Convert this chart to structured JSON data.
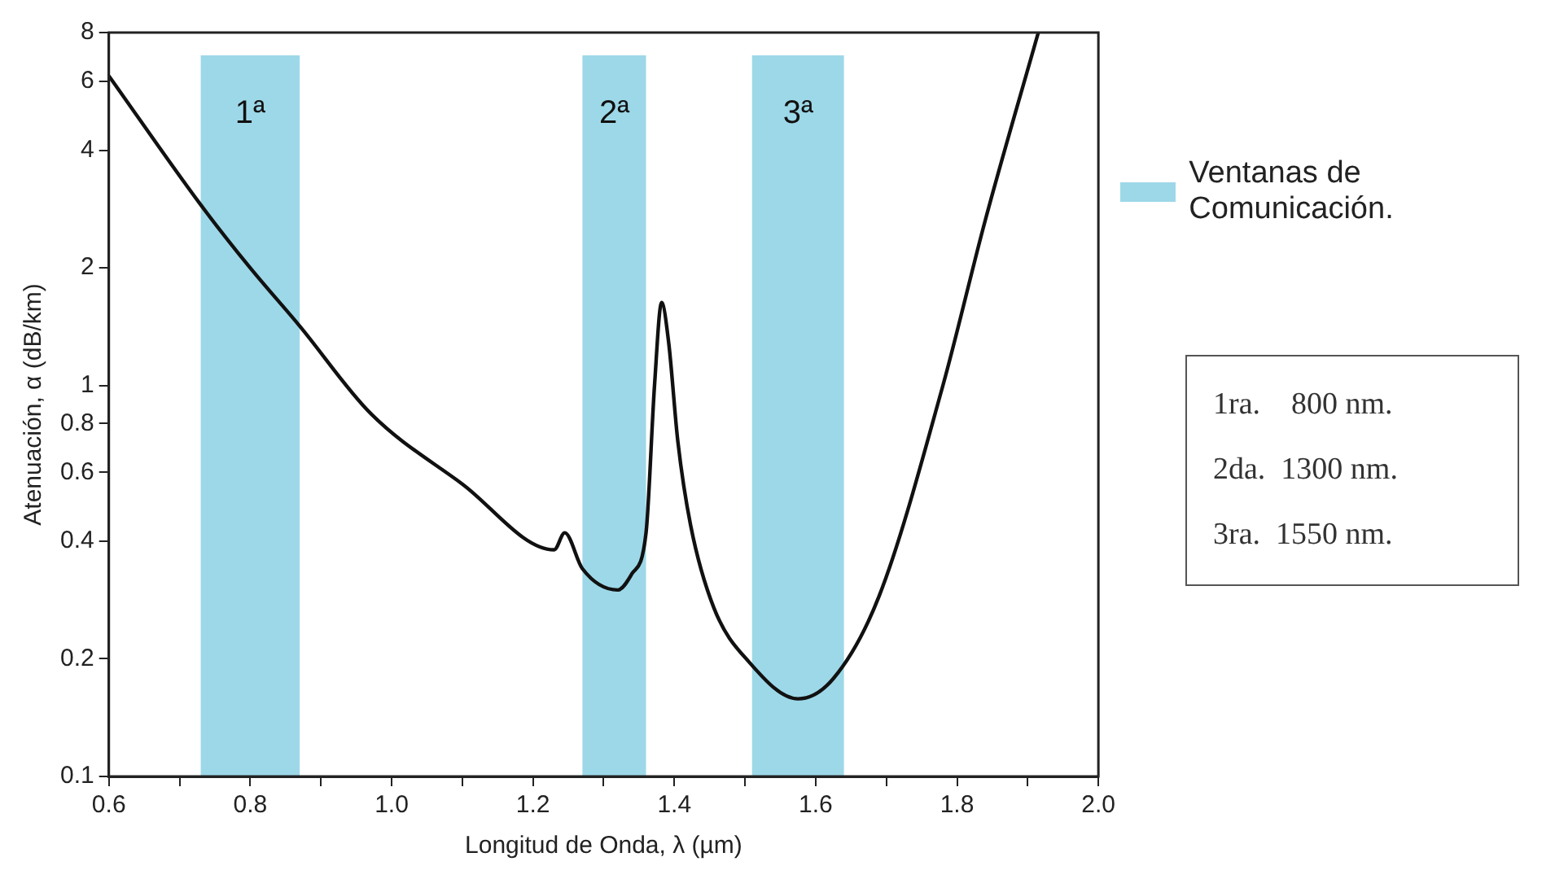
{
  "chart_data": {
    "type": "line",
    "xlabel": "Longitud de Onda, λ (µm)",
    "ylabel": "Atenuación, α (dB/km)",
    "legend_title": "Ventanas de Comunicación.",
    "log": "y",
    "grid": false,
    "marker": "none",
    "line_style": "solid",
    "xlim": [
      0.6,
      2.0
    ],
    "xticks": [
      0.6,
      {
        "value": 0.7,
        "label": null
      },
      0.8,
      {
        "value": 0.9,
        "label": null
      },
      {
        "value": 1,
        "label": "1.0"
      },
      {
        "value": 1.1,
        "label": null
      },
      1.2,
      {
        "value": 1.3,
        "label": null
      },
      1.4,
      {
        "value": 1.5,
        "label": null
      },
      1.6,
      {
        "value": 1.7,
        "label": null
      },
      1.8,
      {
        "value": 1.9,
        "label": null
      },
      {
        "value": 2,
        "label": "2.0"
      }
    ],
    "ylim": [
      0.1,
      8
    ],
    "yticks": [
      0.1,
      0.2,
      0.4,
      0.6,
      0.8,
      1,
      2,
      4,
      6,
      8
    ],
    "series": [
      {
        "color": "#111111",
        "x": [
          0.6,
          0.73,
          0.8,
          0.87,
          0.97,
          1.1,
          1.23,
          1.245,
          1.27,
          1.32,
          1.34,
          1.36,
          1.372,
          1.382,
          1.392,
          1.405,
          1.423,
          1.456,
          1.506,
          1.575,
          1.625,
          1.69,
          1.78,
          1.84,
          1.915
        ],
        "values": [
          6.2,
          2.9,
          2.0,
          1.42,
          0.85,
          0.56,
          0.38,
          0.42,
          0.34,
          0.3,
          0.33,
          0.42,
          1.0,
          1.63,
          1.29,
          0.72,
          0.44,
          0.27,
          0.196,
          0.158,
          0.178,
          0.29,
          1.0,
          2.65,
          8
        ]
      }
    ],
    "bands": [
      {
        "axis": "x",
        "from": 0.73,
        "to": 0.87,
        "label": "1ª",
        "color": "#9dd8e8"
      },
      {
        "axis": "x",
        "from": 1.27,
        "to": 1.36,
        "label": "2ª",
        "color": "#9dd8e8"
      },
      {
        "axis": "x",
        "from": 1.51,
        "to": 1.64,
        "label": "3ª",
        "color": "#9dd8e8"
      }
    ],
    "annotations": [
      "1ra.    800 nm.",
      "2da.  1300 nm.",
      "3ra.  1550 nm."
    ]
  }
}
